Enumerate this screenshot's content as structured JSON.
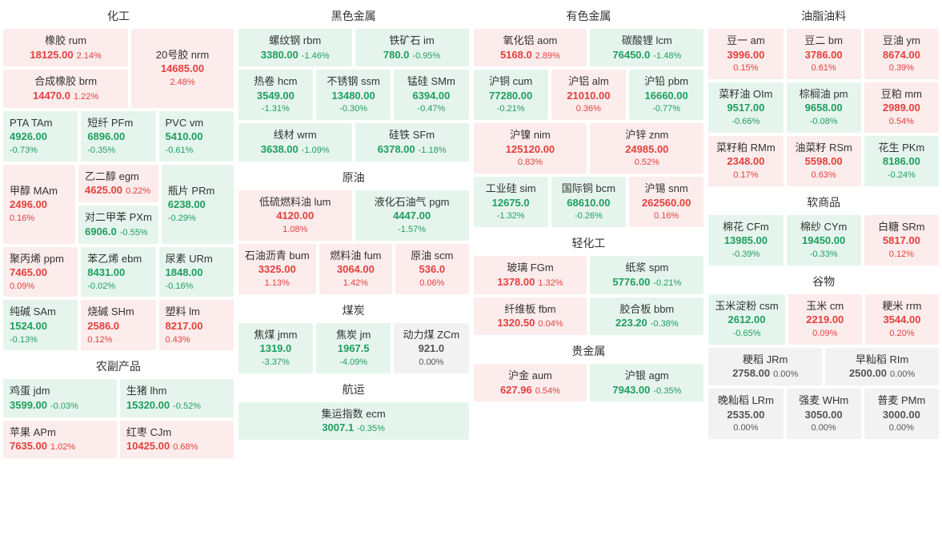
{
  "colors": {
    "up_bg": "#fdecec",
    "up_fg": "#e2413e",
    "down_bg": "#e5f5ed",
    "down_fg": "#1f9e5f",
    "flat_bg": "#f2f2f2",
    "flat_fg": "#555555",
    "page_bg": "#ffffff",
    "title_fg": "#333333"
  },
  "sections": {
    "chem": {
      "title": "化工",
      "items": {
        "rum": {
          "name": "橡胶  rum",
          "price": "18125.00",
          "pct": "2.14%",
          "dir": "up"
        },
        "nrm": {
          "name": "20号胶  nrm",
          "price": "14685.00",
          "pct": "2.48%",
          "dir": "up"
        },
        "brm": {
          "name": "合成橡胶  brm",
          "price": "14470.0",
          "pct": "1.22%",
          "dir": "up"
        },
        "tam": {
          "name": "PTA  TAm",
          "price": "4926.00",
          "pct": "-0.73%",
          "dir": "down"
        },
        "pfm": {
          "name": "短纤  PFm",
          "price": "6896.00",
          "pct": "-0.35%",
          "dir": "down"
        },
        "vm": {
          "name": "PVC  vm",
          "price": "5410.00",
          "pct": "-0.61%",
          "dir": "down"
        },
        "mam": {
          "name": "甲醇  MAm",
          "price": "2496.00",
          "pct": "0.16%",
          "dir": "up"
        },
        "egm": {
          "name": "乙二醇  egm",
          "price": "4625.00",
          "pct": "0.22%",
          "dir": "up"
        },
        "pxm": {
          "name": "对二甲苯  PXm",
          "price": "6906.0",
          "pct": "-0.55%",
          "dir": "down"
        },
        "prm": {
          "name": "瓶片  PRm",
          "price": "6238.00",
          "pct": "-0.29%",
          "dir": "down"
        },
        "ppm": {
          "name": "聚丙烯  ppm",
          "price": "7465.00",
          "pct": "0.09%",
          "dir": "up"
        },
        "ebm": {
          "name": "苯乙烯  ebm",
          "price": "8431.00",
          "pct": "-0.02%",
          "dir": "down"
        },
        "urm": {
          "name": "尿素  URm",
          "price": "1848.00",
          "pct": "-0.16%",
          "dir": "down"
        },
        "sam": {
          "name": "纯碱  SAm",
          "price": "1524.00",
          "pct": "-0.13%",
          "dir": "down"
        },
        "shm": {
          "name": "烧碱  SHm",
          "price": "2586.0",
          "pct": "0.12%",
          "dir": "up"
        },
        "lm": {
          "name": "塑料  lm",
          "price": "8217.00",
          "pct": "0.43%",
          "dir": "up"
        }
      }
    },
    "agri": {
      "title": "农副产品",
      "items": {
        "jdm": {
          "name": "鸡蛋  jdm",
          "price": "3599.00",
          "pct": "-0.03%",
          "dir": "down"
        },
        "lhm": {
          "name": "生猪  lhm",
          "price": "15320.00",
          "pct": "-0.52%",
          "dir": "down"
        },
        "apm": {
          "name": "苹果  APm",
          "price": "7635.00",
          "pct": "1.02%",
          "dir": "up"
        },
        "cjm": {
          "name": "红枣  CJm",
          "price": "10425.00",
          "pct": "0.68%",
          "dir": "up"
        }
      }
    },
    "black": {
      "title": "黑色金属",
      "items": {
        "rbm": {
          "name": "螺纹钢  rbm",
          "price": "3380.00",
          "pct": "-1.46%",
          "dir": "down"
        },
        "im": {
          "name": "铁矿石  im",
          "price": "780.0",
          "pct": "-0.95%",
          "dir": "down"
        },
        "hcm": {
          "name": "热卷  hcm",
          "price": "3549.00",
          "pct": "-1.31%",
          "dir": "down"
        },
        "ssm": {
          "name": "不锈钢  ssm",
          "price": "13480.00",
          "pct": "-0.30%",
          "dir": "down"
        },
        "smm": {
          "name": "锰硅  SMm",
          "price": "6394.00",
          "pct": "-0.47%",
          "dir": "down"
        },
        "wrm": {
          "name": "线材  wrm",
          "price": "3638.00",
          "pct": "-1.09%",
          "dir": "down"
        },
        "sfm": {
          "name": "硅铁  SFm",
          "price": "6378.00",
          "pct": "-1.18%",
          "dir": "down"
        }
      }
    },
    "oil": {
      "title": "原油",
      "items": {
        "lum": {
          "name": "低硫燃料油  lum",
          "price": "4120.00",
          "pct": "1.08%",
          "dir": "up"
        },
        "pgm": {
          "name": "液化石油气  pgm",
          "price": "4447.00",
          "pct": "-1.57%",
          "dir": "down"
        },
        "bum": {
          "name": "石油沥青  bum",
          "price": "3325.00",
          "pct": "1.13%",
          "dir": "up"
        },
        "fum": {
          "name": "燃料油  fum",
          "price": "3064.00",
          "pct": "1.42%",
          "dir": "up"
        },
        "scm": {
          "name": "原油  scm",
          "price": "536.0",
          "pct": "0.06%",
          "dir": "up"
        }
      }
    },
    "coal": {
      "title": "煤炭",
      "items": {
        "jmm": {
          "name": "焦煤  jmm",
          "price": "1319.0",
          "pct": "-3.37%",
          "dir": "down"
        },
        "jm": {
          "name": "焦炭  jm",
          "price": "1967.5",
          "pct": "-4.09%",
          "dir": "down"
        },
        "zcm": {
          "name": "动力煤  ZCm",
          "price": "921.0",
          "pct": "0.00%",
          "dir": "flat"
        }
      }
    },
    "ship": {
      "title": "航运",
      "items": {
        "ecm": {
          "name": "集运指数  ecm",
          "price": "3007.1",
          "pct": "-0.35%",
          "dir": "down"
        }
      }
    },
    "nfmetal": {
      "title": "有色金属",
      "items": {
        "aom": {
          "name": "氧化铝  aom",
          "price": "5168.0",
          "pct": "2.89%",
          "dir": "up"
        },
        "lcm": {
          "name": "碳酸锂  lcm",
          "price": "76450.0",
          "pct": "-1.48%",
          "dir": "down"
        },
        "cum": {
          "name": "沪铜  cum",
          "price": "77280.00",
          "pct": "-0.21%",
          "dir": "down"
        },
        "alm": {
          "name": "沪铝  alm",
          "price": "21010.00",
          "pct": "0.36%",
          "dir": "up"
        },
        "pbm": {
          "name": "沪铅  pbm",
          "price": "16660.00",
          "pct": "-0.77%",
          "dir": "down"
        },
        "nim": {
          "name": "沪镍  nim",
          "price": "125120.00",
          "pct": "0.83%",
          "dir": "up"
        },
        "znm": {
          "name": "沪锌  znm",
          "price": "24985.00",
          "pct": "0.52%",
          "dir": "up"
        },
        "sim": {
          "name": "工业硅  sim",
          "price": "12675.0",
          "pct": "-1.32%",
          "dir": "down"
        },
        "bcm": {
          "name": "国际铜  bcm",
          "price": "68610.00",
          "pct": "-0.26%",
          "dir": "down"
        },
        "snm": {
          "name": "沪锡  snm",
          "price": "262560.00",
          "pct": "0.16%",
          "dir": "up"
        }
      }
    },
    "lightchem": {
      "title": "轻化工",
      "items": {
        "fgm": {
          "name": "玻璃  FGm",
          "price": "1378.00",
          "pct": "1.32%",
          "dir": "up"
        },
        "spm": {
          "name": "纸浆  spm",
          "price": "5776.00",
          "pct": "-0.21%",
          "dir": "down"
        },
        "fbm": {
          "name": "纤维板  fbm",
          "price": "1320.50",
          "pct": "0.04%",
          "dir": "up"
        },
        "bbm": {
          "name": "胶合板  bbm",
          "price": "223.20",
          "pct": "-0.38%",
          "dir": "down"
        }
      }
    },
    "pmetal": {
      "title": "贵金属",
      "items": {
        "aum": {
          "name": "沪金  aum",
          "price": "627.96",
          "pct": "0.54%",
          "dir": "up"
        },
        "agm": {
          "name": "沪银  agm",
          "price": "7943.00",
          "pct": "-0.35%",
          "dir": "down"
        }
      }
    },
    "fat": {
      "title": "油脂油料",
      "items": {
        "am": {
          "name": "豆一  am",
          "price": "3996.00",
          "pct": "0.15%",
          "dir": "up"
        },
        "bm": {
          "name": "豆二  bm",
          "price": "3786.00",
          "pct": "0.61%",
          "dir": "up"
        },
        "ym": {
          "name": "豆油  ym",
          "price": "8674.00",
          "pct": "0.39%",
          "dir": "up"
        },
        "olm": {
          "name": "菜籽油  OIm",
          "price": "9517.00",
          "pct": "-0.66%",
          "dir": "down"
        },
        "pm": {
          "name": "棕榈油  pm",
          "price": "9658.00",
          "pct": "-0.08%",
          "dir": "down"
        },
        "mm": {
          "name": "豆粕  mm",
          "price": "2989.00",
          "pct": "0.54%",
          "dir": "up"
        },
        "rmm": {
          "name": "菜籽粕  RMm",
          "price": "2348.00",
          "pct": "0.17%",
          "dir": "up"
        },
        "rsm": {
          "name": "油菜籽  RSm",
          "price": "5598.00",
          "pct": "0.63%",
          "dir": "up"
        },
        "pkm": {
          "name": "花生  PKm",
          "price": "8186.00",
          "pct": "-0.24%",
          "dir": "down"
        }
      }
    },
    "soft": {
      "title": "软商品",
      "items": {
        "cfm": {
          "name": "棉花  CFm",
          "price": "13985.00",
          "pct": "-0.39%",
          "dir": "down"
        },
        "cym": {
          "name": "棉纱  CYm",
          "price": "19450.00",
          "pct": "-0.33%",
          "dir": "down"
        },
        "srm": {
          "name": "白糖  SRm",
          "price": "5817.00",
          "pct": "0.12%",
          "dir": "up"
        }
      }
    },
    "grain": {
      "title": "谷物",
      "items": {
        "csm": {
          "name": "玉米淀粉  csm",
          "price": "2612.00",
          "pct": "-0.65%",
          "dir": "down"
        },
        "cm": {
          "name": "玉米  cm",
          "price": "2219.00",
          "pct": "0.09%",
          "dir": "up"
        },
        "rrm": {
          "name": "粳米  rrm",
          "price": "3544.00",
          "pct": "0.20%",
          "dir": "up"
        },
        "jrm": {
          "name": "粳稻  JRm",
          "price": "2758.00",
          "pct": "0.00%",
          "dir": "flat"
        },
        "rim": {
          "name": "早籼稻  RIm",
          "price": "2500.00",
          "pct": "0.00%",
          "dir": "flat"
        },
        "lrm": {
          "name": "晚籼稻  LRm",
          "price": "2535.00",
          "pct": "0.00%",
          "dir": "flat"
        },
        "whm": {
          "name": "强麦  WHm",
          "price": "3050.00",
          "pct": "0.00%",
          "dir": "flat"
        },
        "pmm": {
          "name": "普麦  PMm",
          "price": "3000.00",
          "pct": "0.00%",
          "dir": "flat"
        }
      }
    }
  }
}
